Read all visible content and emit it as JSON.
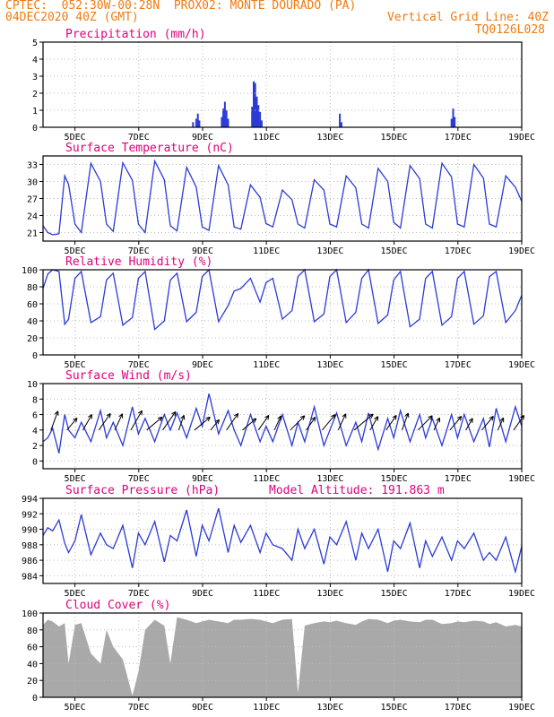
{
  "header": {
    "line1_left": "CPTEC:  052:30W-00:28N  PROX02: MONTE DOURADO (PA)",
    "line2_left": "04DEC2020 40Z (GMT)",
    "line2_right": "Vertical Grid Line: 40Z",
    "line3_right": "TQ0126L028"
  },
  "colors": {
    "header": "#f07a10",
    "title": "#e0007a",
    "series": "#2b3bd6",
    "wind_arrow": "#000000",
    "cloud_fill": "#a9a9a9",
    "grid": "#bbbbbb"
  },
  "chart_data": [
    {
      "id": "precip",
      "type": "bar",
      "title": "Precipitation (mm/h)",
      "ylim": [
        0,
        5
      ],
      "yticks": [
        0,
        1,
        2,
        3,
        4,
        5
      ],
      "xlim": [
        0,
        15
      ],
      "xtick_positions": [
        1,
        3,
        5,
        7,
        9,
        11,
        13,
        15
      ],
      "xtick_labels": [
        "5DEC",
        "7DEC",
        "9DEC",
        "11DEC",
        "13DEC",
        "15DEC",
        "17DEC",
        "19DEC"
      ],
      "x": [
        4.7,
        4.8,
        4.85,
        4.9,
        5.6,
        5.65,
        5.7,
        5.75,
        5.8,
        6.55,
        6.6,
        6.65,
        6.7,
        6.72,
        6.75,
        6.8,
        6.85,
        9.3,
        9.35,
        12.8,
        12.85,
        12.9
      ],
      "values": [
        0.3,
        0.5,
        0.8,
        0.4,
        0.6,
        1.1,
        1.5,
        1.0,
        0.5,
        1.2,
        2.7,
        2.6,
        1.8,
        1.1,
        1.3,
        0.9,
        0.4,
        0.8,
        0.3,
        0.5,
        1.1,
        0.6
      ],
      "grid": true
    },
    {
      "id": "temp",
      "type": "line",
      "title": "Surface Temperature (nC)",
      "ylim": [
        19.5,
        34.5
      ],
      "yticks": [
        21,
        24,
        27,
        30,
        33
      ],
      "xlim": [
        0,
        15
      ],
      "xtick_positions": [
        1,
        3,
        5,
        7,
        9,
        11,
        13,
        15
      ],
      "xtick_labels": [
        "5DEC",
        "7DEC",
        "9DEC",
        "11DEC",
        "13DEC",
        "15DEC",
        "17DEC",
        "19DEC"
      ],
      "x": [
        0.0,
        0.15,
        0.3,
        0.5,
        0.68,
        0.8,
        1.0,
        1.2,
        1.5,
        1.8,
        1.99,
        2.2,
        2.5,
        2.8,
        2.99,
        3.2,
        3.5,
        3.8,
        3.99,
        4.2,
        4.5,
        4.8,
        4.99,
        5.2,
        5.5,
        5.8,
        5.99,
        6.2,
        6.5,
        6.8,
        6.99,
        7.2,
        7.5,
        7.8,
        7.99,
        8.2,
        8.5,
        8.8,
        8.99,
        9.2,
        9.5,
        9.8,
        9.99,
        10.2,
        10.5,
        10.8,
        10.99,
        11.2,
        11.5,
        11.8,
        11.99,
        12.2,
        12.5,
        12.8,
        12.99,
        13.2,
        13.5,
        13.8,
        13.99,
        14.2,
        14.5,
        14.8,
        15.0
      ],
      "series": [
        {
          "values": [
            22.2,
            21.0,
            20.6,
            20.8,
            31.0,
            29.5,
            22.5,
            21.0,
            33.2,
            30.0,
            22.5,
            21.2,
            33.3,
            30.2,
            22.5,
            21.0,
            33.6,
            30.3,
            22.2,
            21.3,
            32.5,
            29.0,
            22.0,
            21.4,
            32.8,
            29.4,
            22.0,
            21.6,
            29.4,
            27.2,
            22.6,
            22.0,
            28.5,
            26.8,
            22.5,
            21.8,
            30.3,
            28.5,
            22.5,
            22.0,
            31.0,
            28.9,
            22.5,
            21.8,
            32.3,
            30.0,
            22.8,
            21.8,
            32.8,
            30.5,
            22.5,
            21.8,
            33.2,
            30.8,
            22.5,
            22.0,
            33.0,
            30.6,
            22.5,
            22.0,
            31.0,
            29.0,
            26.5
          ]
        }
      ],
      "grid": true
    },
    {
      "id": "rh",
      "type": "line",
      "title": "Relative Humidity (%)",
      "ylim": [
        0,
        100
      ],
      "yticks": [
        0,
        20,
        40,
        60,
        80,
        100
      ],
      "xlim": [
        0,
        15
      ],
      "xtick_positions": [
        1,
        3,
        5,
        7,
        9,
        11,
        13,
        15
      ],
      "xtick_labels": [
        "5DEC",
        "7DEC",
        "9DEC",
        "11DEC",
        "13DEC",
        "15DEC",
        "17DEC",
        "19DEC"
      ],
      "x": [
        0.0,
        0.15,
        0.3,
        0.5,
        0.68,
        0.8,
        1.0,
        1.2,
        1.5,
        1.8,
        1.99,
        2.2,
        2.5,
        2.8,
        2.99,
        3.2,
        3.5,
        3.8,
        3.99,
        4.2,
        4.5,
        4.8,
        4.99,
        5.2,
        5.5,
        5.8,
        5.99,
        6.2,
        6.5,
        6.8,
        6.99,
        7.2,
        7.5,
        7.8,
        7.99,
        8.2,
        8.5,
        8.8,
        8.99,
        9.2,
        9.5,
        9.8,
        9.99,
        10.2,
        10.5,
        10.8,
        10.99,
        11.2,
        11.5,
        11.8,
        11.99,
        12.2,
        12.5,
        12.8,
        12.99,
        13.2,
        13.5,
        13.8,
        13.99,
        14.2,
        14.5,
        14.8,
        15.0
      ],
      "series": [
        {
          "values": [
            78,
            95,
            100,
            98,
            36,
            42,
            90,
            98,
            38,
            45,
            88,
            96,
            35,
            44,
            90,
            98,
            30,
            40,
            88,
            96,
            39,
            50,
            92,
            100,
            39,
            58,
            75,
            78,
            90,
            62,
            85,
            90,
            42,
            52,
            92,
            100,
            39,
            48,
            92,
            100,
            38,
            50,
            90,
            100,
            37,
            47,
            88,
            98,
            33,
            42,
            90,
            98,
            35,
            45,
            90,
            98,
            36,
            46,
            92,
            98,
            38,
            52,
            70
          ]
        }
      ],
      "grid": true
    },
    {
      "id": "wind",
      "type": "line",
      "title": "Surface Wind (m/s)",
      "ylim": [
        -1,
        10
      ],
      "yticks": [
        0,
        2,
        4,
        6,
        8,
        10
      ],
      "xlim": [
        0,
        15
      ],
      "xtick_positions": [
        1,
        3,
        5,
        7,
        9,
        11,
        13,
        15
      ],
      "xtick_labels": [
        "5DEC",
        "7DEC",
        "9DEC",
        "11DEC",
        "13DEC",
        "15DEC",
        "17DEC",
        "19DEC"
      ],
      "x": [
        0.0,
        0.15,
        0.3,
        0.5,
        0.68,
        0.8,
        1.0,
        1.2,
        1.5,
        1.8,
        1.99,
        2.2,
        2.5,
        2.8,
        2.99,
        3.2,
        3.5,
        3.8,
        3.99,
        4.2,
        4.5,
        4.8,
        4.99,
        5.2,
        5.5,
        5.8,
        5.99,
        6.2,
        6.5,
        6.8,
        6.99,
        7.2,
        7.5,
        7.8,
        7.99,
        8.2,
        8.5,
        8.8,
        8.99,
        9.2,
        9.5,
        9.8,
        9.99,
        10.2,
        10.5,
        10.8,
        10.99,
        11.2,
        11.5,
        11.8,
        11.99,
        12.2,
        12.5,
        12.8,
        12.99,
        13.2,
        13.5,
        13.8,
        13.99,
        14.2,
        14.5,
        14.8,
        15.0
      ],
      "series": [
        {
          "values": [
            2.5,
            3.0,
            4.2,
            1.0,
            6.0,
            4.0,
            3.0,
            5.0,
            2.5,
            6.5,
            3.0,
            5.0,
            2.0,
            7.0,
            3.5,
            5.5,
            2.5,
            6.0,
            4.0,
            6.2,
            3.0,
            6.8,
            4.5,
            8.7,
            3.5,
            6.5,
            4.0,
            2.0,
            6.0,
            2.5,
            4.5,
            2.5,
            6.0,
            2.0,
            5.0,
            2.5,
            7.0,
            2.0,
            4.0,
            6.2,
            2.0,
            5.0,
            2.5,
            6.2,
            1.5,
            5.5,
            3.0,
            6.5,
            2.5,
            6.0,
            3.0,
            5.5,
            2.0,
            6.0,
            3.0,
            6.0,
            2.5,
            5.5,
            1.8,
            6.8,
            2.5,
            7.0,
            4.5
          ]
        }
      ],
      "wind_arrows": {
        "x": [
          0.25,
          0.75,
          1.25,
          1.75,
          2.25,
          2.75,
          3.25,
          3.75,
          4.25,
          4.75,
          5.25,
          5.75,
          6.25,
          6.75,
          7.25,
          7.75,
          8.25,
          8.75,
          9.25,
          9.75,
          10.25,
          10.75,
          11.25,
          11.75,
          12.25,
          12.75,
          13.25,
          13.75,
          14.25,
          14.75
        ],
        "speed": [
          4.5,
          3.5,
          4.0,
          4.5,
          4.0,
          5.0,
          4.5,
          5.0,
          3.5,
          4.5,
          3.0,
          4.5,
          4.0,
          4.0,
          3.5,
          4.5,
          3.5,
          4.5,
          4.0,
          5.5,
          3.5,
          4.0,
          4.0,
          4.5,
          3.0,
          4.0,
          3.0,
          4.0,
          3.0,
          4.0
        ],
        "dir": [
          200,
          220,
          210,
          215,
          205,
          210,
          230,
          215,
          200,
          230,
          220,
          215,
          230,
          215,
          205,
          225,
          215,
          220,
          205,
          230,
          210,
          215,
          200,
          225,
          205,
          220,
          210,
          220,
          205,
          215
        ]
      },
      "grid": true
    },
    {
      "id": "pressure",
      "type": "line",
      "title": "Surface Pressure (hPa)",
      "annotation": "Model Altitude: 191.863 m",
      "ylim": [
        983,
        994
      ],
      "yticks": [
        984,
        986,
        988,
        990,
        992,
        994
      ],
      "xlim": [
        0,
        15
      ],
      "xtick_positions": [
        1,
        3,
        5,
        7,
        9,
        11,
        13,
        15
      ],
      "xtick_labels": [
        "5DEC",
        "7DEC",
        "9DEC",
        "11DEC",
        "13DEC",
        "15DEC",
        "17DEC",
        "19DEC"
      ],
      "x": [
        0.0,
        0.15,
        0.3,
        0.5,
        0.68,
        0.8,
        1.0,
        1.2,
        1.5,
        1.8,
        1.99,
        2.2,
        2.5,
        2.8,
        2.99,
        3.2,
        3.5,
        3.8,
        3.99,
        4.2,
        4.5,
        4.8,
        4.99,
        5.2,
        5.5,
        5.8,
        5.99,
        6.2,
        6.5,
        6.8,
        6.99,
        7.2,
        7.5,
        7.8,
        7.99,
        8.2,
        8.5,
        8.8,
        8.99,
        9.2,
        9.5,
        9.8,
        9.99,
        10.2,
        10.5,
        10.8,
        10.99,
        11.2,
        11.5,
        11.8,
        11.99,
        12.2,
        12.5,
        12.8,
        12.99,
        13.2,
        13.5,
        13.8,
        13.99,
        14.2,
        14.5,
        14.8,
        15.0
      ],
      "series": [
        {
          "values": [
            989.2,
            990.2,
            989.8,
            991.2,
            988.2,
            987.0,
            988.5,
            991.9,
            986.7,
            989.5,
            988.0,
            987.5,
            990.5,
            985.0,
            989.5,
            988.0,
            991.0,
            985.8,
            989.2,
            988.5,
            992.5,
            986.5,
            990.5,
            988.5,
            992.7,
            987.0,
            990.5,
            988.3,
            990.5,
            987.0,
            989.5,
            988.0,
            987.5,
            986.0,
            990.0,
            987.5,
            990.0,
            985.5,
            989.0,
            988.0,
            991.0,
            986.0,
            989.5,
            987.5,
            990.0,
            984.5,
            988.5,
            987.5,
            990.8,
            985.0,
            988.5,
            986.5,
            989.0,
            986.0,
            988.5,
            987.5,
            989.5,
            986.0,
            987.0,
            986.0,
            989.0,
            984.5,
            987.8
          ]
        }
      ],
      "grid": true
    },
    {
      "id": "cloud",
      "type": "area",
      "title": "Cloud Cover (%)",
      "ylim": [
        0,
        100
      ],
      "yticks": [
        0,
        20,
        40,
        60,
        80,
        100
      ],
      "xlim": [
        0,
        15
      ],
      "xtick_positions": [
        1,
        3,
        5,
        7,
        9,
        11,
        13,
        15
      ],
      "xtick_labels": [
        "5DEC",
        "7DEC",
        "9DEC",
        "11DEC",
        "13DEC",
        "15DEC",
        "17DEC",
        "19DEC"
      ],
      "x": [
        0.0,
        0.15,
        0.3,
        0.5,
        0.68,
        0.8,
        1.0,
        1.2,
        1.5,
        1.8,
        1.99,
        2.2,
        2.5,
        2.8,
        2.99,
        3.2,
        3.5,
        3.8,
        3.99,
        4.2,
        4.5,
        4.8,
        4.99,
        5.2,
        5.5,
        5.8,
        5.99,
        6.2,
        6.5,
        6.8,
        6.99,
        7.2,
        7.5,
        7.8,
        7.99,
        8.2,
        8.5,
        8.8,
        8.99,
        9.2,
        9.5,
        9.8,
        9.99,
        10.2,
        10.5,
        10.8,
        10.99,
        11.2,
        11.5,
        11.8,
        11.99,
        12.2,
        12.5,
        12.8,
        12.99,
        13.2,
        13.5,
        13.8,
        13.99,
        14.2,
        14.5,
        14.8,
        15.0
      ],
      "series": [
        {
          "values": [
            86,
            92,
            90,
            84,
            88,
            40,
            86,
            88,
            52,
            40,
            80,
            60,
            45,
            2,
            30,
            80,
            92,
            85,
            40,
            95,
            92,
            88,
            90,
            92,
            90,
            88,
            92,
            92,
            93,
            92,
            90,
            88,
            92,
            93,
            5,
            85,
            88,
            90,
            89,
            91,
            88,
            86,
            90,
            93,
            92,
            88,
            91,
            92,
            90,
            89,
            92,
            92,
            87,
            88,
            90,
            89,
            91,
            90,
            87,
            89,
            84,
            86,
            84
          ]
        }
      ],
      "grid": true
    }
  ]
}
